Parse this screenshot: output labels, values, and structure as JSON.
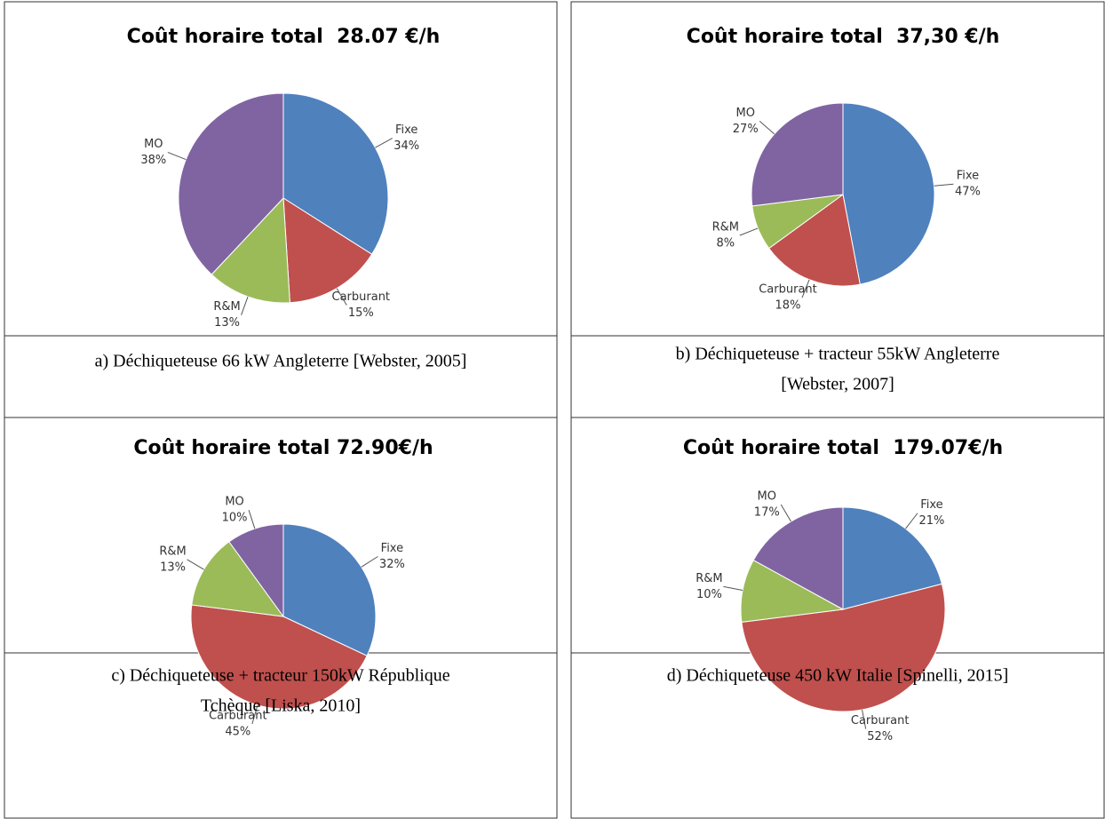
{
  "chart_data": [
    {
      "type": "pie",
      "title": "Coût horaire total  28.07 €/h",
      "categories": [
        "Fixe",
        "Carburant",
        "R&M",
        "MO"
      ],
      "values": [
        34,
        15,
        13,
        38
      ],
      "value_labels": [
        "34%",
        "15%",
        "13%",
        "38%"
      ],
      "colors": [
        "#4f81bd",
        "#c0504d",
        "#9bbb59",
        "#8064a2"
      ]
    },
    {
      "type": "pie",
      "title": "Coût horaire total  37,30 €/h",
      "categories": [
        "Fixe",
        "Carburant",
        "R&M",
        "MO"
      ],
      "values": [
        47,
        18,
        8,
        27
      ],
      "value_labels": [
        "47%",
        "18%",
        "8%",
        "27%"
      ],
      "colors": [
        "#4f81bd",
        "#c0504d",
        "#9bbb59",
        "#8064a2"
      ]
    },
    {
      "type": "pie",
      "title": "Coût horaire total 72.90€/h",
      "categories": [
        "Fixe",
        "Carburant",
        "R&M",
        "MO"
      ],
      "values": [
        32,
        45,
        13,
        10
      ],
      "value_labels": [
        "32%",
        "45%",
        "13%",
        "10%"
      ],
      "colors": [
        "#4f81bd",
        "#c0504d",
        "#9bbb59",
        "#8064a2"
      ]
    },
    {
      "type": "pie",
      "title": "Coût horaire total  179.07€/h",
      "categories": [
        "Fixe",
        "Carburant",
        "R&M",
        "MO"
      ],
      "values": [
        21,
        52,
        10,
        17
      ],
      "value_labels": [
        "21%",
        "52%",
        "10%",
        "17%"
      ],
      "colors": [
        "#4f81bd",
        "#c0504d",
        "#9bbb59",
        "#8064a2"
      ]
    }
  ],
  "captions": [
    [
      "a) Déchiqueteuse 66 kW Angleterre [Webster, 2005]"
    ],
    [
      "b) Déchiqueteuse + tracteur 55kW Angleterre",
      "[Webster, 2007]"
    ],
    [
      "c) Déchiqueteuse + tracteur 150kW République",
      "Tchèque [Liska, 2010]"
    ],
    [
      "d) Déchiqueteuse 450 kW Italie [Spinelli, 2015]"
    ]
  ]
}
